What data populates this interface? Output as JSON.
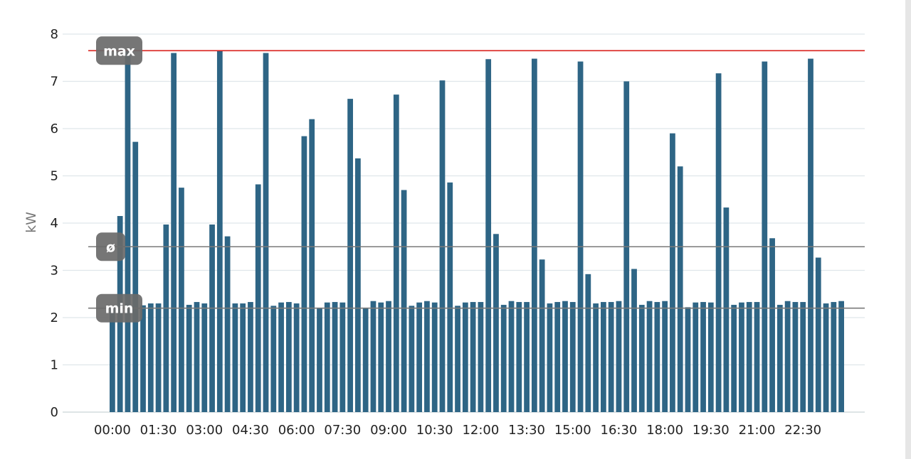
{
  "chart_data": {
    "type": "bar",
    "ylabel": "kW",
    "ylim": [
      0,
      8
    ],
    "yticks": [
      0,
      1,
      2,
      3,
      4,
      5,
      6,
      7,
      8
    ],
    "grid": true,
    "x_tick_labels": [
      "00:00",
      "01:30",
      "03:00",
      "04:30",
      "06:00",
      "07:30",
      "09:00",
      "10:30",
      "12:00",
      "13:30",
      "15:00",
      "16:30",
      "18:00",
      "19:30",
      "21:00",
      "22:30"
    ],
    "bar_color": "#2e6585",
    "values": [
      2.2,
      4.15,
      7.65,
      5.72,
      2.26,
      2.3,
      2.3,
      3.97,
      7.6,
      4.75,
      2.27,
      2.33,
      2.3,
      3.97,
      7.65,
      3.72,
      2.3,
      2.3,
      2.33,
      4.82,
      7.6,
      2.25,
      2.32,
      2.33,
      2.3,
      5.84,
      6.2,
      2.2,
      2.32,
      2.33,
      2.32,
      6.63,
      5.37,
      2.2,
      2.35,
      2.32,
      2.35,
      6.72,
      4.7,
      2.25,
      2.32,
      2.35,
      2.32,
      7.02,
      4.86,
      2.25,
      2.32,
      2.33,
      2.33,
      7.47,
      3.77,
      2.27,
      2.35,
      2.33,
      2.33,
      7.48,
      3.23,
      2.3,
      2.33,
      2.35,
      2.33,
      7.42,
      2.92,
      2.3,
      2.33,
      2.33,
      2.35,
      7.0,
      3.03,
      2.27,
      2.35,
      2.33,
      2.35,
      5.9,
      5.2,
      2.22,
      2.32,
      2.33,
      2.32,
      7.17,
      4.33,
      2.27,
      2.32,
      2.33,
      2.33,
      7.42,
      3.68,
      2.27,
      2.35,
      2.33,
      2.33,
      7.48,
      3.27,
      2.3,
      2.33,
      2.35
    ],
    "reference_lines": [
      {
        "label": "max",
        "value": 7.65,
        "color": "#d9221c"
      },
      {
        "label": "ø",
        "value": 3.5,
        "color": "#7a7a7a"
      },
      {
        "label": "min",
        "value": 2.2,
        "color": "#7a7a7a"
      }
    ]
  }
}
